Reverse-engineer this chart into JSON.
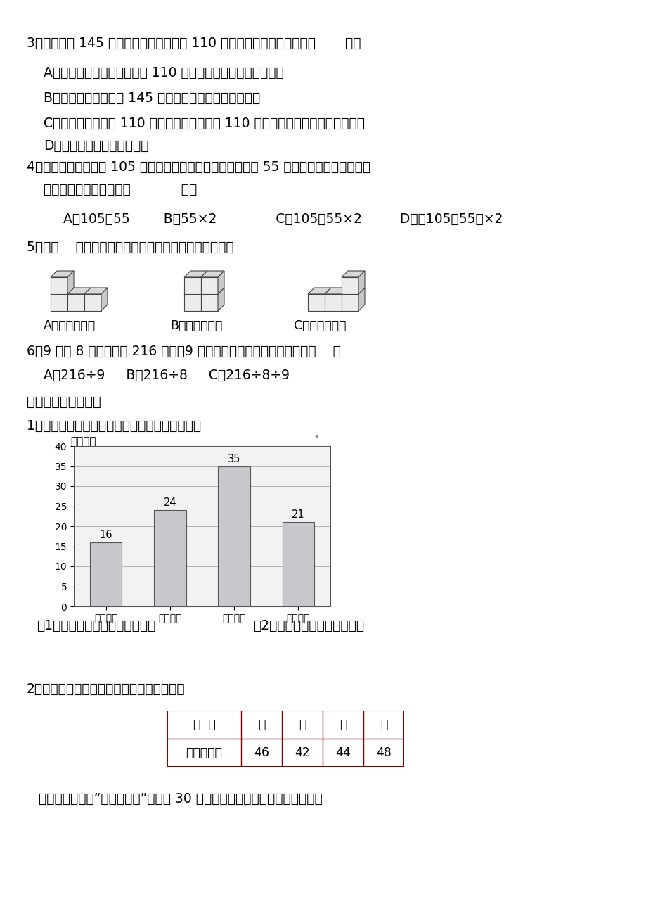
{
  "bg_color": "#ffffff",
  "text_color": "#000000",
  "q3_text": "3．小明身高 145 厘米，河水平均深度是 110 厘米，下列说法合理的是（       ）。",
  "q3_A": "A．河中每个地方的深度都是 110 厘米，所以小明不会有危险。",
  "q3_B": "B．河水的深度不超过 145 厘米，所以小明不会有危险。",
  "q3_C": "C．河中有的地方比 110 厘米深，有的地方比 110 厘米浅，所以小明可能有危险。",
  "q3_D": "D．无论怎样都不会有危险。",
  "q4_text": "4．一筐苹果，连筐重 105 千克，恰好卖掉一半后，连筐还重 55 千克。这筐苹果净重多少",
  "q4_text2": "千克？正确的算式是：（            ）。",
  "q4_opts": "A．105－55        B．55×2              C．105－55×2         D．（105－55）×2",
  "q5_text": "5．从（    ）面看下面这三个物体的形状是完全相同的。",
  "q5_A": "A．上面和前面",
  "q5_B": "B．上面和右面",
  "q5_C": "C．右面和前面",
  "q6_text": "6．9 只羊 8 天一共产奶 216 千克，9 只羊每天产奶多少千克？算式是（    ）",
  "q6_opts": "A、216÷9     B、216÷8     C、216÷8÷9",
  "section4": "四、解决实际问题。",
  "p1_text": "1．下图是小刚家去年各季度用水量情况统计图：",
  "chart_unit": "单位：吨",
  "chart_categories": [
    "第一季度",
    "第二季度",
    "第三季度",
    "第四季度"
  ],
  "chart_values": [
    16,
    24,
    35,
    21
  ],
  "chart_ylim": [
    0,
    40
  ],
  "chart_yticks": [
    0,
    5,
    10,
    15,
    20,
    25,
    30,
    35,
    40
  ],
  "chart_bar_color": "#c8c8cc",
  "chart_bar_edge": "#555555",
  "p1_q1": "（1）平均每个季度用水多少吨？",
  "p1_q2": "（2）平均每个月用水多少吨？",
  "p2_text": "2．光明小学四年级各班各有学生人数如下：",
  "table_headers": [
    "班  级",
    "一",
    "二",
    "三",
    "四"
  ],
  "table_row1": [
    "人数（人）",
    "46",
    "42",
    "44",
    "48"
  ],
  "p2_q": "这些学生在参观“科技展览馆”时，每 30 人一批进馆，一共需要分几批进馆？"
}
